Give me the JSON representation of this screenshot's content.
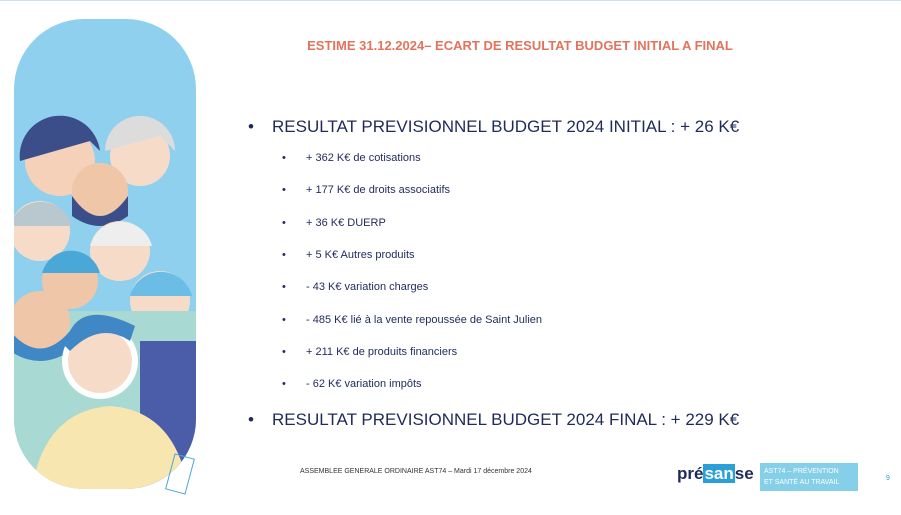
{
  "title": "ESTIME 31.12.2024– ECART DE RESULTAT BUDGET INITIAL A FINAL",
  "items": [
    {
      "text": "RESULTAT PREVISIONNEL BUDGET 2024 INITIAL : + 26 K€",
      "subitems": [
        "+ 362 K€ de cotisations",
        "+ 177 K€ de droits associatifs",
        "+ 36 K€ DUERP",
        "+ 5 K€ Autres produits",
        "- 43 K€ variation charges",
        "- 485 K€ lié à la vente repoussée de Saint Julien",
        "+ 211 K€ de produits financiers",
        "- 62 K€ variation impôts"
      ]
    },
    {
      "text": "RESULTAT PREVISIONNEL BUDGET 2024 FINAL : + 229 K€"
    }
  ],
  "footer": {
    "text": "ASSEMBLEE GENERALE ORDINAIRE AST74 – Mardi 17 décembre 2024",
    "page": "9"
  },
  "logo_presanse": [
    "pré",
    "san",
    "se"
  ],
  "logo_ast": [
    "AST74 – PRÉVENTION",
    "ET SANTÉ AU TRAVAIL"
  ]
}
